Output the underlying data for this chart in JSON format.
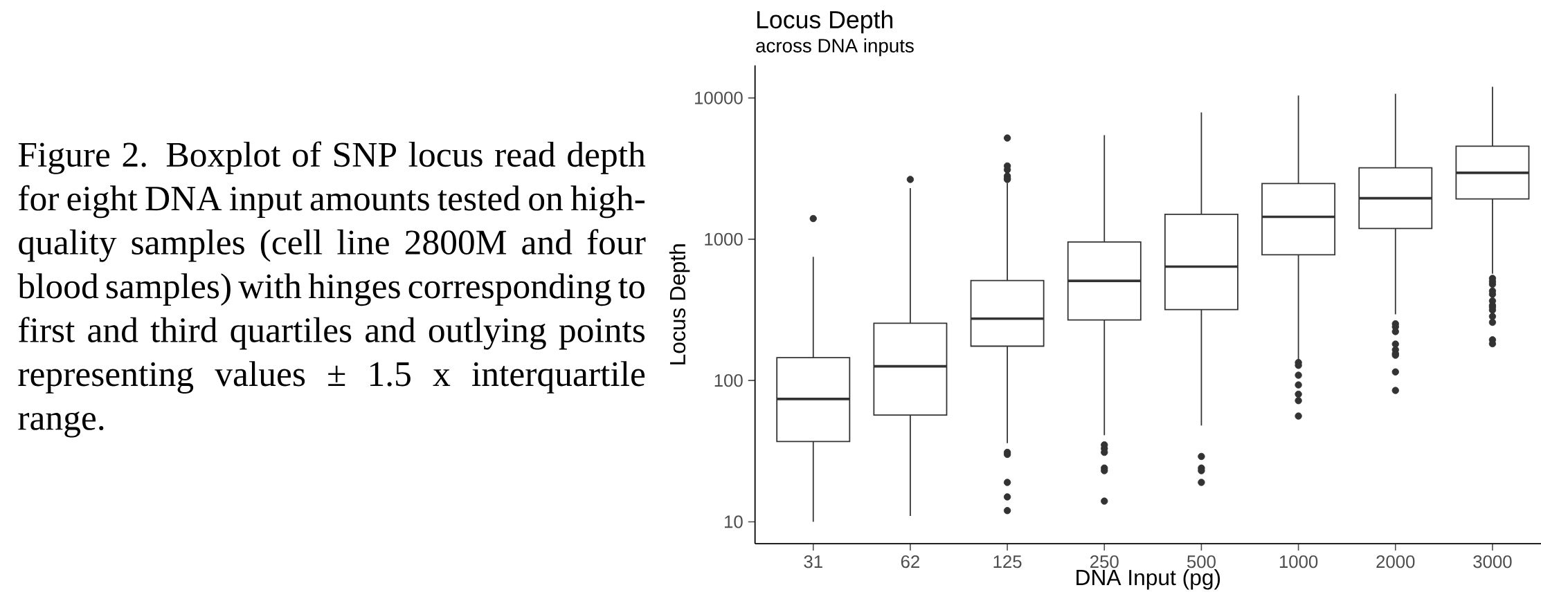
{
  "chart_data": {
    "type": "box",
    "title": "Locus Depth",
    "subtitle": "across DNA inputs",
    "xlabel": "DNA Input (pg)",
    "ylabel": "Locus Depth",
    "categories": [
      "31",
      "62",
      "125",
      "250",
      "500",
      "1000",
      "2000",
      "3000"
    ],
    "color": "#333333",
    "log": "y",
    "ylim": [
      7,
      17000
    ],
    "yticks": [
      10,
      100,
      1000,
      10000
    ],
    "boxes": [
      {
        "low": 10,
        "q1": 37,
        "median": 74,
        "q3": 145,
        "high": 750,
        "outliers": [
          1400
        ]
      },
      {
        "low": 11,
        "q1": 57,
        "median": 126,
        "q3": 254,
        "high": 2300,
        "outliers": [
          2650
        ]
      },
      {
        "low": 36,
        "q1": 175,
        "median": 274,
        "q3": 510,
        "high": 2500,
        "outliers": [
          5200,
          3300,
          3100,
          2800,
          2700,
          2650,
          31,
          30,
          19,
          15,
          12
        ]
      },
      {
        "low": 41,
        "q1": 268,
        "median": 507,
        "q3": 955,
        "high": 5450,
        "outliers": [
          35,
          33,
          31,
          24,
          23,
          14
        ]
      },
      {
        "low": 48,
        "q1": 318,
        "median": 640,
        "q3": 1500,
        "high": 7900,
        "outliers": [
          29,
          24,
          23,
          19
        ]
      },
      {
        "low": 140,
        "q1": 776,
        "median": 1440,
        "q3": 2480,
        "high": 10400,
        "outliers": [
          134,
          128,
          109,
          93,
          80,
          72,
          56
        ]
      },
      {
        "low": 294,
        "q1": 1190,
        "median": 1950,
        "q3": 3200,
        "high": 10700,
        "outliers": [
          252,
          240,
          222,
          181,
          165,
          155,
          151,
          115,
          85
        ]
      },
      {
        "low": 570,
        "q1": 1930,
        "median": 2950,
        "q3": 4550,
        "high": 12000,
        "outliers": [
          528,
          502,
          480,
          430,
          408,
          366,
          340,
          331,
          315,
          284,
          258,
          194,
          182
        ]
      }
    ],
    "annotations": [
      "Figure 2. Boxplot of SNP locus read depth for eight DNA input amounts tested on high-quality samples (cell line 2800M and four blood samples) with hinges corresponding to first and third quartiles and outlying points representing values ± 1.5 x interquartile range."
    ]
  }
}
